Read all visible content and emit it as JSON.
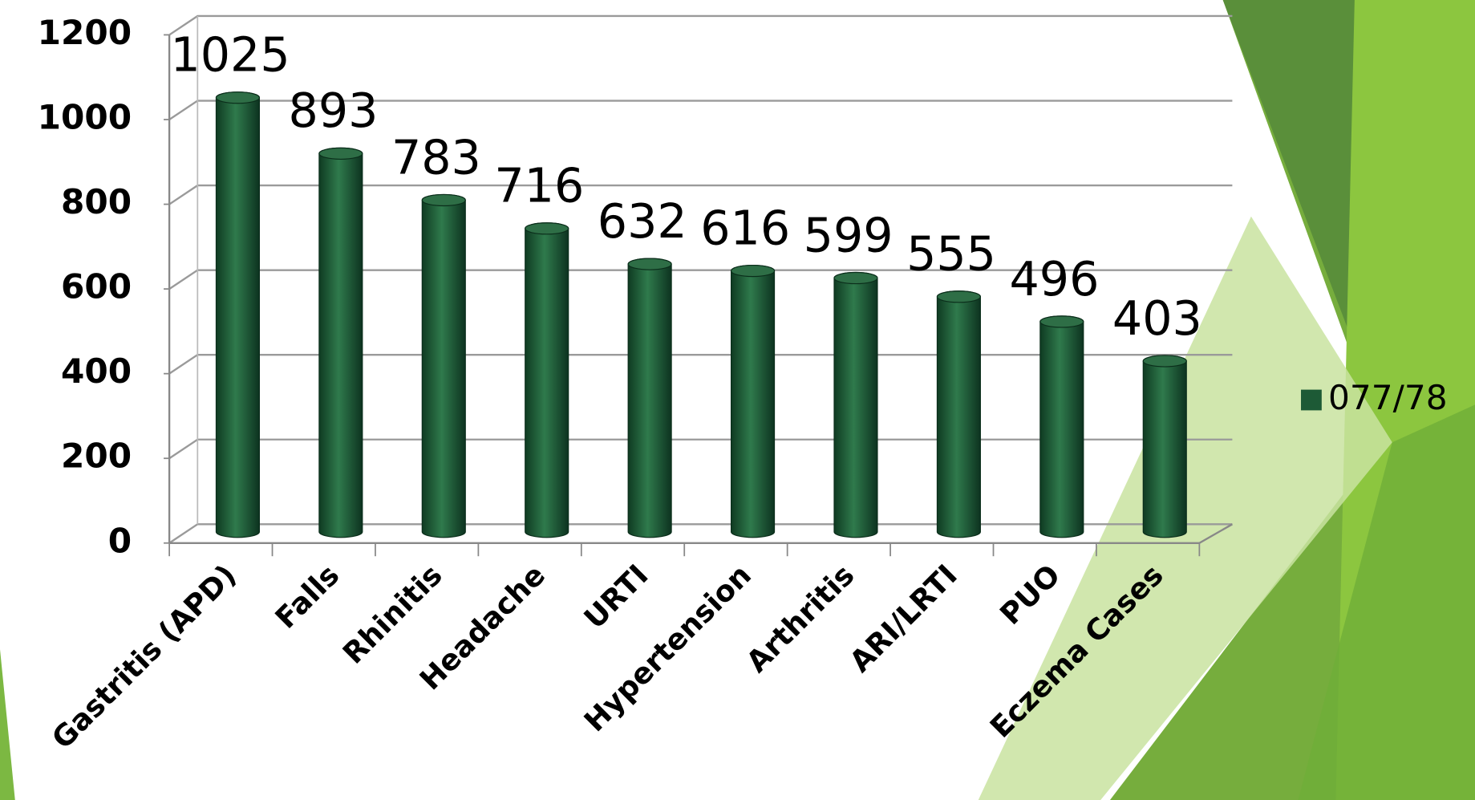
{
  "chart_data": {
    "type": "bar",
    "style": "3d-cylinder",
    "categories": [
      "Gastritis (APD)",
      "Falls",
      "Rhinitis",
      "Headache",
      "URTI",
      "Hypertension",
      "Arthritis",
      "ARI/LRTI",
      "PUO",
      "Eczema Cases"
    ],
    "series": [
      {
        "name": "077/78",
        "color": "#1d5a36",
        "values": [
          1025,
          893,
          783,
          716,
          632,
          616,
          599,
          555,
          496,
          403
        ]
      }
    ],
    "ylim": [
      0,
      1200
    ],
    "yticks": [
      0,
      200,
      400,
      600,
      800,
      1000,
      1200
    ],
    "grid": true,
    "legend": "right"
  }
}
